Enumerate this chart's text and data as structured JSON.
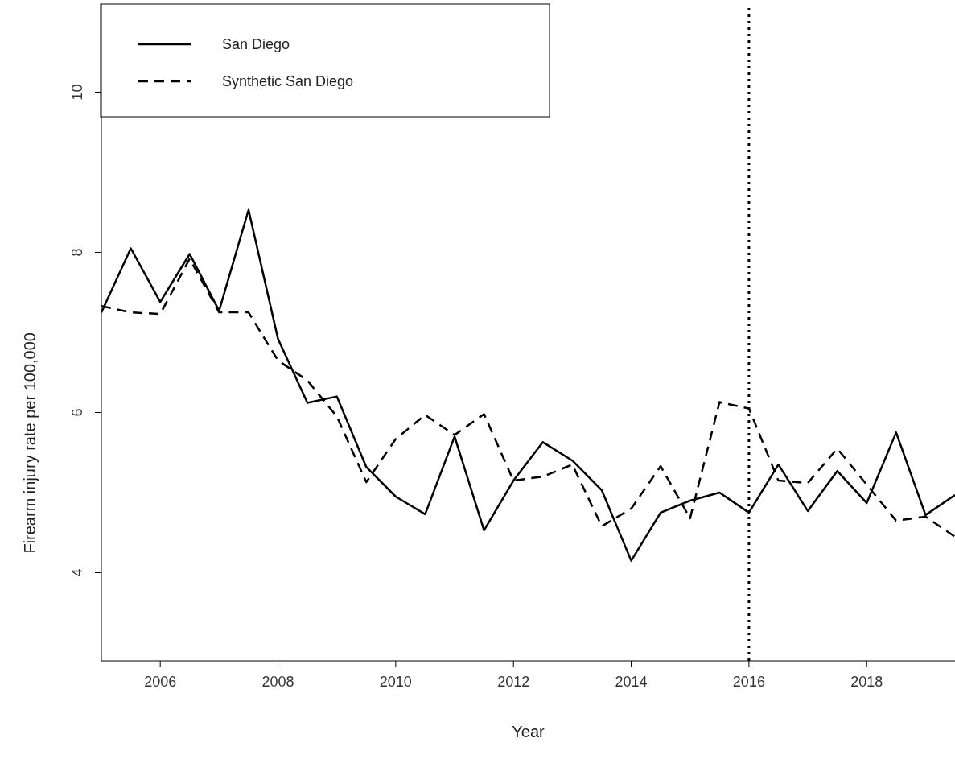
{
  "chart_data": {
    "type": "line",
    "xlabel": "Year",
    "ylabel": "Firearm injury rate per 100,000",
    "x": [
      2005,
      2005.5,
      2006,
      2006.5,
      2007,
      2007.5,
      2008,
      2008.5,
      2009,
      2009.5,
      2010,
      2010.5,
      2011,
      2011.5,
      2012,
      2012.5,
      2013,
      2013.5,
      2014,
      2014.5,
      2015,
      2015.5,
      2016,
      2016.5,
      2017,
      2017.5,
      2018,
      2018.5,
      2019,
      2019.5
    ],
    "series": [
      {
        "name": "San Diego",
        "color": "#000000",
        "line_style": "solid",
        "values": [
          7.25,
          8.05,
          7.38,
          7.98,
          7.27,
          8.53,
          6.92,
          6.12,
          6.2,
          5.32,
          4.95,
          4.73,
          5.7,
          4.53,
          5.15,
          5.63,
          5.4,
          5.03,
          4.15,
          4.75,
          4.9,
          5.0,
          4.75,
          5.35,
          4.77,
          5.27,
          4.87,
          5.75,
          4.72,
          4.97
        ]
      },
      {
        "name": "Synthetic San Diego",
        "color": "#000000",
        "line_style": "dashed",
        "values": [
          7.33,
          7.25,
          7.23,
          7.92,
          7.25,
          7.25,
          6.65,
          6.4,
          5.95,
          5.13,
          5.67,
          5.97,
          5.72,
          5.98,
          5.15,
          5.2,
          5.35,
          4.58,
          4.8,
          5.33,
          4.68,
          6.13,
          6.05,
          5.15,
          5.12,
          5.55,
          5.1,
          4.65,
          4.7,
          4.45
        ]
      }
    ],
    "xlim": [
      2005,
      2019.5
    ],
    "xticks": [
      2006,
      2008,
      2010,
      2012,
      2014,
      2016,
      2018
    ],
    "ylim": [
      2.9,
      11.1
    ],
    "yticks": [
      4,
      6,
      8,
      10
    ],
    "ref_lines": [
      {
        "axis": "x",
        "value": 2016,
        "color": "#000000",
        "line_style": "dotted"
      }
    ],
    "legend": "top left",
    "marker": "none"
  }
}
